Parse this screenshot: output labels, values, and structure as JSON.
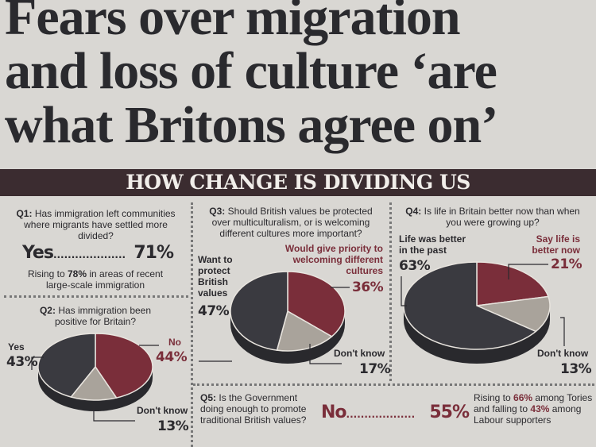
{
  "headline": "Fears over migration and loss of culture ‘are what Britons agree on’",
  "banner": "HOW CHANGE IS DIVIDING US",
  "q1": {
    "num": "Q1:",
    "question": "Has immigration left communities where migrants have settled more divided?",
    "answer": "Yes",
    "dots": "....................",
    "value": "71%",
    "note_pre": "Rising to ",
    "note_value": "78%",
    "note_post": " in areas of recent large-scale immigration"
  },
  "q5": {
    "num": "Q5:",
    "question": "Is the Government doing enough to promote traditional British values?",
    "answer": "No",
    "dots": "...................",
    "value": "55%",
    "note_a": "Rising to ",
    "note_v1": "66%",
    "note_b": " among Tories and falling to ",
    "note_v2": "43%",
    "note_c": " among Labour supporters"
  },
  "colors": {
    "dark": "#3a3a40",
    "maroon": "#7a2e3a",
    "grey": "#a9a39b",
    "banner": "#3b2c30"
  },
  "chart_data": [
    {
      "type": "pie",
      "title": "Q2: Has immigration been positive for Britain?",
      "num": "Q2:",
      "question": "Has immigration been positive for Britain?",
      "slices": [
        {
          "label": "No",
          "value": 44,
          "display": "44%",
          "color": "#7a2e3a"
        },
        {
          "label": "Don't know",
          "value": 13,
          "display": "13%",
          "color": "#a9a39b"
        },
        {
          "label": "Yes",
          "value": 43,
          "display": "43%",
          "color": "#3a3a40"
        }
      ]
    },
    {
      "type": "pie",
      "title": "Q3: Should British values be protected over multiculturalism, or is welcoming different cultures more important?",
      "num": "Q3:",
      "question": "Should British values be protected over multiculturalism, or is welcoming different cultures more important?",
      "slices": [
        {
          "label": "Would give priority to welcoming different cultures",
          "value": 36,
          "display": "36%",
          "color": "#7a2e3a"
        },
        {
          "label": "Don't know",
          "value": 17,
          "display": "17%",
          "color": "#a9a39b"
        },
        {
          "label": "Want to protect British values",
          "value": 47,
          "display": "47%",
          "color": "#3a3a40"
        }
      ]
    },
    {
      "type": "pie",
      "title": "Q4: Is life in Britain better now than when you were growing up?",
      "num": "Q4:",
      "question": "Is life in Britain better now than when you were growing up?",
      "slices": [
        {
          "label": "Say life is better now",
          "value": 21,
          "display": "21%",
          "color": "#7a2e3a"
        },
        {
          "label": "Don't know",
          "value": 13,
          "display": "13%",
          "color": "#a9a39b"
        },
        {
          "label": "Life was better in the past",
          "value": 63,
          "display": "63%",
          "color": "#3a3a40"
        }
      ]
    }
  ]
}
